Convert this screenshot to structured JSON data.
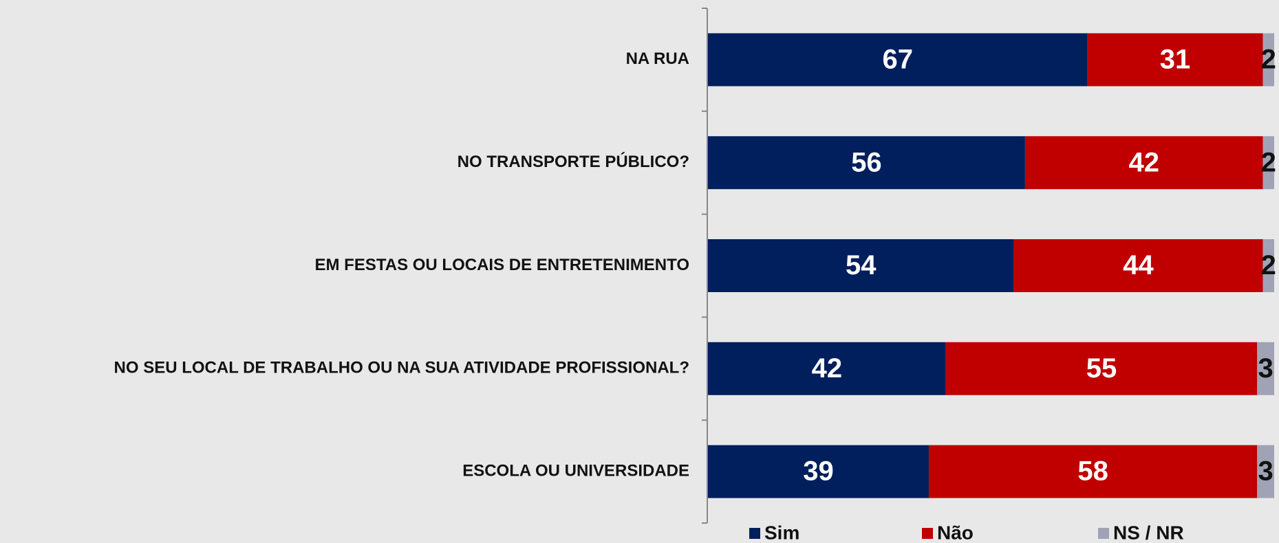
{
  "chart_data": {
    "type": "stacked_bar_horizontal",
    "categories": [
      "NA RUA",
      "NO TRANSPORTE PÚBLICO?",
      "EM FESTAS OU LOCAIS DE ENTRETENIMENTO",
      "NO SEU LOCAL DE TRABALHO OU NA SUA ATIVIDADE PROFISSIONAL?",
      "ESCOLA OU UNIVERSIDADE"
    ],
    "series": [
      {
        "name": "Sim",
        "color": "#001f5c",
        "values": [
          67,
          56,
          54,
          42,
          39
        ]
      },
      {
        "name": "Não",
        "color": "#c00000",
        "values": [
          31,
          42,
          44,
          55,
          58
        ]
      },
      {
        "name": "NS / NR",
        "color": "#a0a3b5",
        "values": [
          2,
          2,
          2,
          3,
          3
        ]
      }
    ],
    "xlim": [
      0,
      100
    ],
    "legend": "bottom"
  }
}
